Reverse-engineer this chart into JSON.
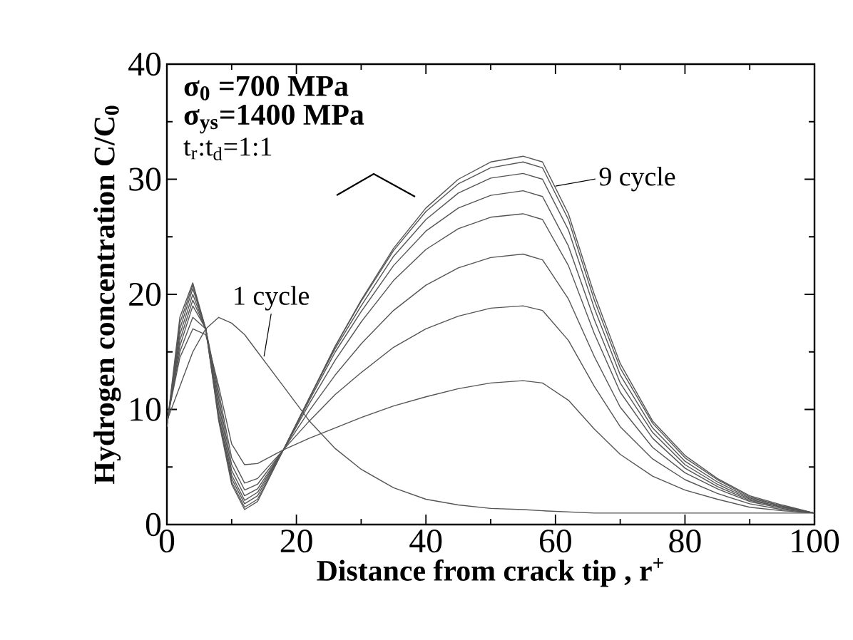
{
  "chart_data": {
    "type": "line",
    "xlabel": "Distance from crack tip ,  r$^{+}$",
    "ylabel": "Hydrogen concentration C/C$_{0}$",
    "x": [
      0,
      2,
      4,
      6,
      8,
      10,
      12,
      14,
      18,
      22,
      26,
      30,
      35,
      40,
      45,
      50,
      55,
      58,
      62,
      66,
      70,
      75,
      80,
      85,
      90,
      95,
      100
    ],
    "xlim": [
      0,
      100
    ],
    "ylim": [
      0,
      40
    ],
    "xticks": [
      0,
      20,
      40,
      60,
      80,
      100
    ],
    "yticks": [
      0,
      10,
      20,
      30,
      40
    ],
    "grid": false,
    "series": [
      {
        "color": "#555555",
        "values": [
          9,
          12,
          15,
          17,
          18,
          17.5,
          16.5,
          15,
          12,
          9,
          6.6,
          4.8,
          3.2,
          2.2,
          1.7,
          1.4,
          1.3,
          1.2,
          1.1,
          1,
          1,
          1,
          1,
          1,
          1,
          1,
          1
        ]
      },
      {
        "color": "#555555",
        "values": [
          9,
          14.5,
          17,
          16.5,
          12,
          7,
          5.2,
          5.3,
          6.5,
          7.5,
          8.4,
          9.3,
          10.3,
          11.1,
          11.8,
          12.3,
          12.5,
          12.3,
          10.8,
          8.3,
          6.1,
          4.2,
          3,
          2.2,
          1.5,
          1.2,
          1
        ]
      },
      {
        "color": "#555555",
        "values": [
          8.9,
          15,
          18,
          17,
          11.5,
          5.8,
          3.6,
          4,
          6.5,
          9,
          11.3,
          13.2,
          15.4,
          17,
          18.1,
          18.8,
          19,
          18.6,
          16,
          12,
          8.5,
          5.7,
          3.9,
          2.7,
          1.8,
          1.3,
          1
        ]
      },
      {
        "color": "#555555",
        "values": [
          8.8,
          15.5,
          19,
          17,
          11,
          5.2,
          3,
          3.5,
          6.5,
          9.9,
          13,
          15.7,
          18.6,
          20.8,
          22.3,
          23.2,
          23.5,
          23,
          19.6,
          14.6,
          10.2,
          6.7,
          4.5,
          3.1,
          2,
          1.4,
          1
        ]
      },
      {
        "color": "#555555",
        "values": [
          8.7,
          16,
          19.5,
          17,
          10.5,
          4.7,
          2.5,
          3.1,
          6.5,
          10.5,
          14.3,
          17.6,
          21.2,
          23.9,
          25.7,
          26.7,
          27,
          26.5,
          22.5,
          16.6,
          11.5,
          7.5,
          4.9,
          3.3,
          2.1,
          1.5,
          1
        ]
      },
      {
        "color": "#555555",
        "values": [
          8.6,
          16.5,
          20,
          17,
          10,
          4.3,
          2.1,
          2.8,
          6.5,
          10.8,
          15,
          18.5,
          22.5,
          25.5,
          27.5,
          28.6,
          29,
          28.5,
          24.2,
          17.8,
          12.3,
          8,
          5.2,
          3.5,
          2.2,
          1.5,
          1
        ]
      },
      {
        "color": "#555555",
        "values": [
          8.5,
          17,
          20.5,
          17,
          9.5,
          4,
          1.8,
          2.5,
          6.5,
          11,
          15.3,
          19,
          23.3,
          26.5,
          28.8,
          30.1,
          30.5,
          30,
          25.6,
          18.8,
          13,
          8.4,
          5.5,
          3.7,
          2.3,
          1.6,
          1
        ]
      },
      {
        "color": "#555555",
        "values": [
          8.5,
          17.5,
          20.8,
          17,
          9.2,
          3.7,
          1.5,
          2.2,
          6.5,
          11,
          15.5,
          19.4,
          23.8,
          27.2,
          29.6,
          31,
          31.5,
          31,
          26.5,
          19.5,
          13.6,
          8.8,
          5.8,
          3.9,
          2.4,
          1.6,
          1
        ]
      },
      {
        "color": "#555555",
        "values": [
          8.5,
          18,
          21,
          17,
          9,
          3.5,
          1.3,
          2,
          6.5,
          11,
          15.5,
          19.5,
          24,
          27.5,
          30,
          31.5,
          32,
          31.5,
          27,
          20,
          14,
          9,
          6,
          4,
          2.5,
          1.7,
          1
        ]
      }
    ],
    "annotations": [
      "σ$_{0}$ =700 MPa",
      "σ$_{ys}$=1400 MPa",
      "t$_{r}$:t$_{d}$=1:1",
      {
        "text": "1 cycle",
        "x": 15,
        "y": 14.6
      },
      {
        "text": "9 cycle",
        "x": 60,
        "y": 29.4
      }
    ]
  }
}
